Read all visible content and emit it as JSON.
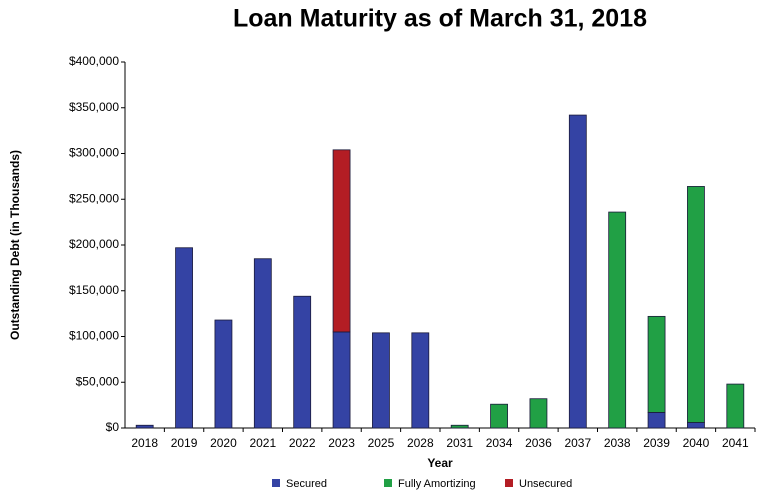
{
  "chart_data": {
    "type": "stacked_bar",
    "title": "Loan Maturity as of March 31, 2018",
    "x_label": "Year",
    "y_label": "Outstanding Debt (in Thousands)",
    "categories": [
      "2018",
      "2019",
      "2020",
      "2021",
      "2022",
      "2023",
      "2025",
      "2028",
      "2031",
      "2034",
      "2036",
      "2037",
      "2038",
      "2039",
      "2040",
      "2041"
    ],
    "series": [
      {
        "name": "Secured",
        "color": "#3443a4",
        "values": [
          3000,
          197000,
          118000,
          185000,
          144000,
          105000,
          104000,
          104000,
          0,
          0,
          0,
          342000,
          0,
          17000,
          6000,
          0
        ]
      },
      {
        "name": "Fully Amortizing",
        "color": "#21a045",
        "values": [
          0,
          0,
          0,
          0,
          0,
          0,
          0,
          0,
          3000,
          26000,
          32000,
          0,
          236000,
          105000,
          258000,
          48000
        ]
      },
      {
        "name": "Unsecured",
        "color": "#b31d24",
        "values": [
          0,
          0,
          0,
          0,
          0,
          199000,
          0,
          0,
          0,
          0,
          0,
          0,
          0,
          0,
          0,
          0
        ]
      }
    ],
    "ylim": [
      0,
      400000
    ],
    "yticks": [
      {
        "value": 0,
        "label": "$0"
      },
      {
        "value": 50000,
        "label": "$50,000"
      },
      {
        "value": 100000,
        "label": "$100,000"
      },
      {
        "value": 150000,
        "label": "$150,000"
      },
      {
        "value": 200000,
        "label": "$200,000"
      },
      {
        "value": 250000,
        "label": "$250,000"
      },
      {
        "value": 300000,
        "label": "$300,000"
      },
      {
        "value": 350000,
        "label": "$350,000"
      },
      {
        "value": 400000,
        "label": "$400,000"
      }
    ],
    "legend": "bottom"
  }
}
